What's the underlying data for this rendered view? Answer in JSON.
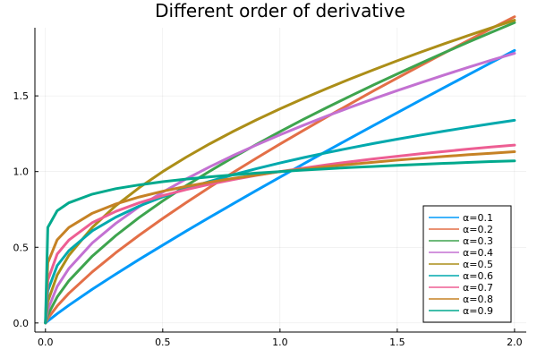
{
  "chart_data": {
    "type": "line",
    "title": "Different order of derivative",
    "xlabel": "",
    "ylabel": "",
    "xlim": [
      0,
      2
    ],
    "ylim": [
      0,
      1.95
    ],
    "xticks": [
      0.0,
      0.5,
      1.0,
      1.5,
      2.0
    ],
    "xtick_labels": [
      "0.0",
      "0.5",
      "1.0",
      "1.5",
      "2.0"
    ],
    "yticks": [
      0.0,
      0.5,
      1.0,
      1.5
    ],
    "ytick_labels": [
      "0.0",
      "0.5",
      "1.0",
      "1.5"
    ],
    "grid": true,
    "legend_position": "bottom-right",
    "x": [
      0,
      0.01,
      0.05,
      0.1,
      0.2,
      0.3,
      0.4,
      0.5,
      0.6,
      0.7,
      0.8,
      0.9,
      1.0,
      1.1,
      1.2,
      1.3,
      1.4,
      1.5,
      1.6,
      1.7,
      1.8,
      1.9,
      2.0
    ],
    "series": [
      {
        "name": "α=0.1",
        "color": "#009AFA",
        "values": [
          0,
          0.013,
          0.061,
          0.117,
          0.223,
          0.323,
          0.42,
          0.514,
          0.607,
          0.698,
          0.787,
          0.876,
          0.963,
          1.05,
          1.136,
          1.221,
          1.305,
          1.389,
          1.472,
          1.555,
          1.637,
          1.719,
          1.8
        ]
      },
      {
        "name": "α=0.2",
        "color": "#E36F47",
        "values": [
          0,
          0.03,
          0.112,
          0.196,
          0.338,
          0.464,
          0.58,
          0.69,
          0.795,
          0.896,
          0.994,
          1.089,
          1.182,
          1.272,
          1.361,
          1.448,
          1.534,
          1.618,
          1.701,
          1.783,
          1.864,
          1.944,
          2.023
        ]
      },
      {
        "name": "α=0.3",
        "color": "#3EA44E",
        "values": [
          0,
          0.053,
          0.172,
          0.279,
          0.442,
          0.577,
          0.697,
          0.806,
          0.907,
          1.002,
          1.093,
          1.18,
          1.264,
          1.345,
          1.423,
          1.499,
          1.573,
          1.645,
          1.716,
          1.785,
          1.853,
          1.919,
          1.984
        ]
      },
      {
        "name": "α=0.4",
        "color": "#C371D2",
        "values": [
          0,
          0.088,
          0.241,
          0.36,
          0.529,
          0.658,
          0.768,
          0.864,
          0.951,
          1.031,
          1.106,
          1.176,
          1.243,
          1.306,
          1.367,
          1.425,
          1.481,
          1.535,
          1.587,
          1.638,
          1.687,
          1.735,
          1.781
        ]
      },
      {
        "name": "α=0.5",
        "color": "#AC8E18",
        "values": [
          0,
          0.141,
          0.316,
          0.447,
          0.632,
          0.775,
          0.894,
          1.0,
          1.095,
          1.183,
          1.265,
          1.342,
          1.414,
          1.483,
          1.549,
          1.612,
          1.673,
          1.732,
          1.789,
          1.844,
          1.897,
          1.949,
          2.0
        ]
      },
      {
        "name": "α=0.6",
        "color": "#00A9AD",
        "values": [
          0,
          0.213,
          0.379,
          0.478,
          0.609,
          0.699,
          0.772,
          0.833,
          0.887,
          0.935,
          0.979,
          1.019,
          1.057,
          1.092,
          1.125,
          1.156,
          1.186,
          1.214,
          1.241,
          1.267,
          1.292,
          1.316,
          1.339
        ]
      },
      {
        "name": "α=0.7",
        "color": "#ED5E93",
        "values": [
          0,
          0.282,
          0.455,
          0.548,
          0.663,
          0.737,
          0.794,
          0.841,
          0.881,
          0.916,
          0.947,
          0.975,
          1.0,
          1.023,
          1.045,
          1.065,
          1.084,
          1.101,
          1.118,
          1.133,
          1.148,
          1.162,
          1.175
        ]
      },
      {
        "name": "α=0.8",
        "color": "#C68225",
        "values": [
          0,
          0.398,
          0.549,
          0.631,
          0.725,
          0.786,
          0.832,
          0.87,
          0.902,
          0.93,
          0.955,
          0.977,
          1.0,
          1.016,
          1.033,
          1.048,
          1.062,
          1.076,
          1.088,
          1.1,
          1.111,
          1.121,
          1.131
        ]
      },
      {
        "name": "α=0.9",
        "color": "#00A98D",
        "values": [
          0,
          0.631,
          0.741,
          0.794,
          0.851,
          0.887,
          0.912,
          0.933,
          0.95,
          0.965,
          0.978,
          0.99,
          1.0,
          1.01,
          1.018,
          1.027,
          1.034,
          1.041,
          1.048,
          1.054,
          1.06,
          1.066,
          1.071
        ]
      }
    ]
  }
}
